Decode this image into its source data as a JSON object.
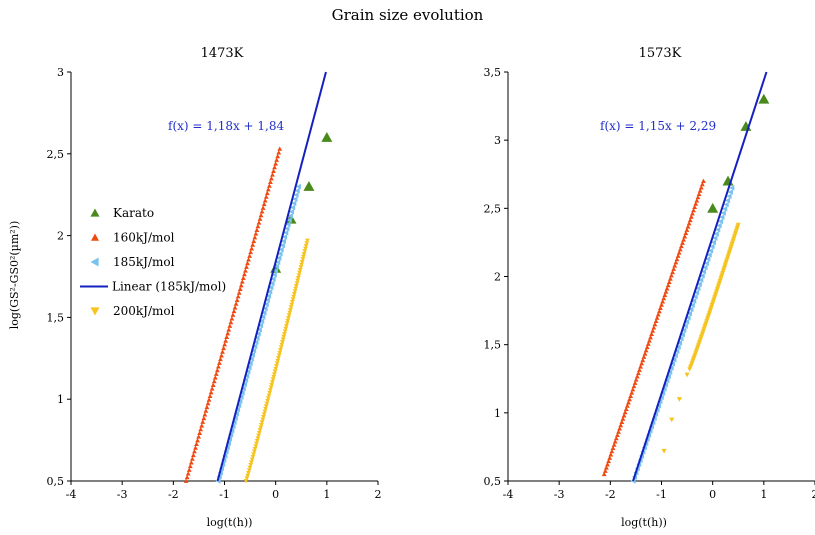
{
  "title": "Grain size evolution",
  "colors": {
    "karato": "#4a8a1c",
    "160kJ": "#ee4a12",
    "185kJ": "#79c2ee",
    "linear": "#1420c0",
    "200kJ": "#f6c41e"
  },
  "legend": [
    {
      "label": "Karato",
      "marker": "triangle-up",
      "color": "#4a8a1c"
    },
    {
      "label": "160kJ/mol",
      "marker": "triangle-up-small",
      "color": "#ee4a12"
    },
    {
      "label": "185kJ/mol",
      "marker": "triangle-left",
      "color": "#79c2ee"
    },
    {
      "label": "Linear (185kJ/mol)",
      "marker": "line",
      "color": "#1420c0"
    },
    {
      "label": "200kJ/mol",
      "marker": "triangle-down",
      "color": "#f6c41e"
    }
  ],
  "chart_data": [
    {
      "type": "scatter",
      "title": "1473K",
      "xlabel": "log(t(h))",
      "ylabel": "log(GS²-GS0²(µm²))",
      "xlim": [
        -4,
        2
      ],
      "ylim": [
        0.5,
        3
      ],
      "xticks": [
        "-4",
        "-3",
        "-2",
        "-1",
        "0",
        "1",
        "2"
      ],
      "yticks": [
        "0,5",
        "1",
        "1,5",
        "2",
        "2,5",
        "3"
      ],
      "equation": "f(x) = 1,18x + 1,84",
      "grid": false,
      "legend_position": "left-center",
      "series": [
        {
          "name": "Karato",
          "points": [
            [
              0.0,
              1.8
            ],
            [
              0.3,
              2.1
            ],
            [
              0.65,
              2.3
            ],
            [
              1.0,
              2.6
            ]
          ]
        },
        {
          "name": "160kJ/mol",
          "range": {
            "x": [
              -1.75,
              0.08
            ],
            "y": [
              0.5,
              2.53
            ]
          }
        },
        {
          "name": "185kJ/mol",
          "range": {
            "x": [
              -1.12,
              0.45
            ],
            "y": [
              0.5,
              2.3
            ]
          }
        },
        {
          "name": "Linear (185kJ/mol)",
          "slope": 1.18,
          "intercept": 1.84
        },
        {
          "name": "200kJ/mol",
          "range": {
            "x": [
              -0.58,
              0.62
            ],
            "y": [
              0.5,
              1.97
            ]
          }
        }
      ]
    },
    {
      "type": "scatter",
      "title": "1573K",
      "xlabel": "log(t(h))",
      "ylabel": "",
      "xlim": [
        -4,
        2
      ],
      "ylim": [
        0.5,
        3.5
      ],
      "xticks": [
        "-4",
        "-3",
        "-2",
        "-1",
        "0",
        "1",
        "2"
      ],
      "yticks": [
        "0,5",
        "1",
        "1,5",
        "2",
        "2,5",
        "3",
        "3,5"
      ],
      "equation": "f(x) = 1,15x + 2,29",
      "grid": false,
      "series": [
        {
          "name": "Karato",
          "points": [
            [
              0.0,
              2.5
            ],
            [
              0.3,
              2.7
            ],
            [
              0.65,
              3.1
            ],
            [
              1.0,
              3.3
            ]
          ]
        },
        {
          "name": "160kJ/mol",
          "range": {
            "x": [
              -2.12,
              -0.18
            ],
            "y": [
              0.55,
              2.7
            ]
          }
        },
        {
          "name": "185kJ/mol",
          "range": {
            "x": [
              -1.55,
              0.38
            ],
            "y": [
              0.5,
              2.65
            ]
          }
        },
        {
          "name": "Linear (185kJ/mol)",
          "slope": 1.15,
          "intercept": 2.29
        },
        {
          "name": "200kJ/mol",
          "points": [
            [
              -0.95,
              0.72
            ],
            [
              -0.8,
              0.95
            ],
            [
              -0.65,
              1.1
            ],
            [
              -0.5,
              1.28
            ]
          ],
          "range": {
            "x": [
              -0.45,
              0.5
            ],
            "y": [
              1.32,
              2.38
            ]
          }
        }
      ]
    }
  ]
}
